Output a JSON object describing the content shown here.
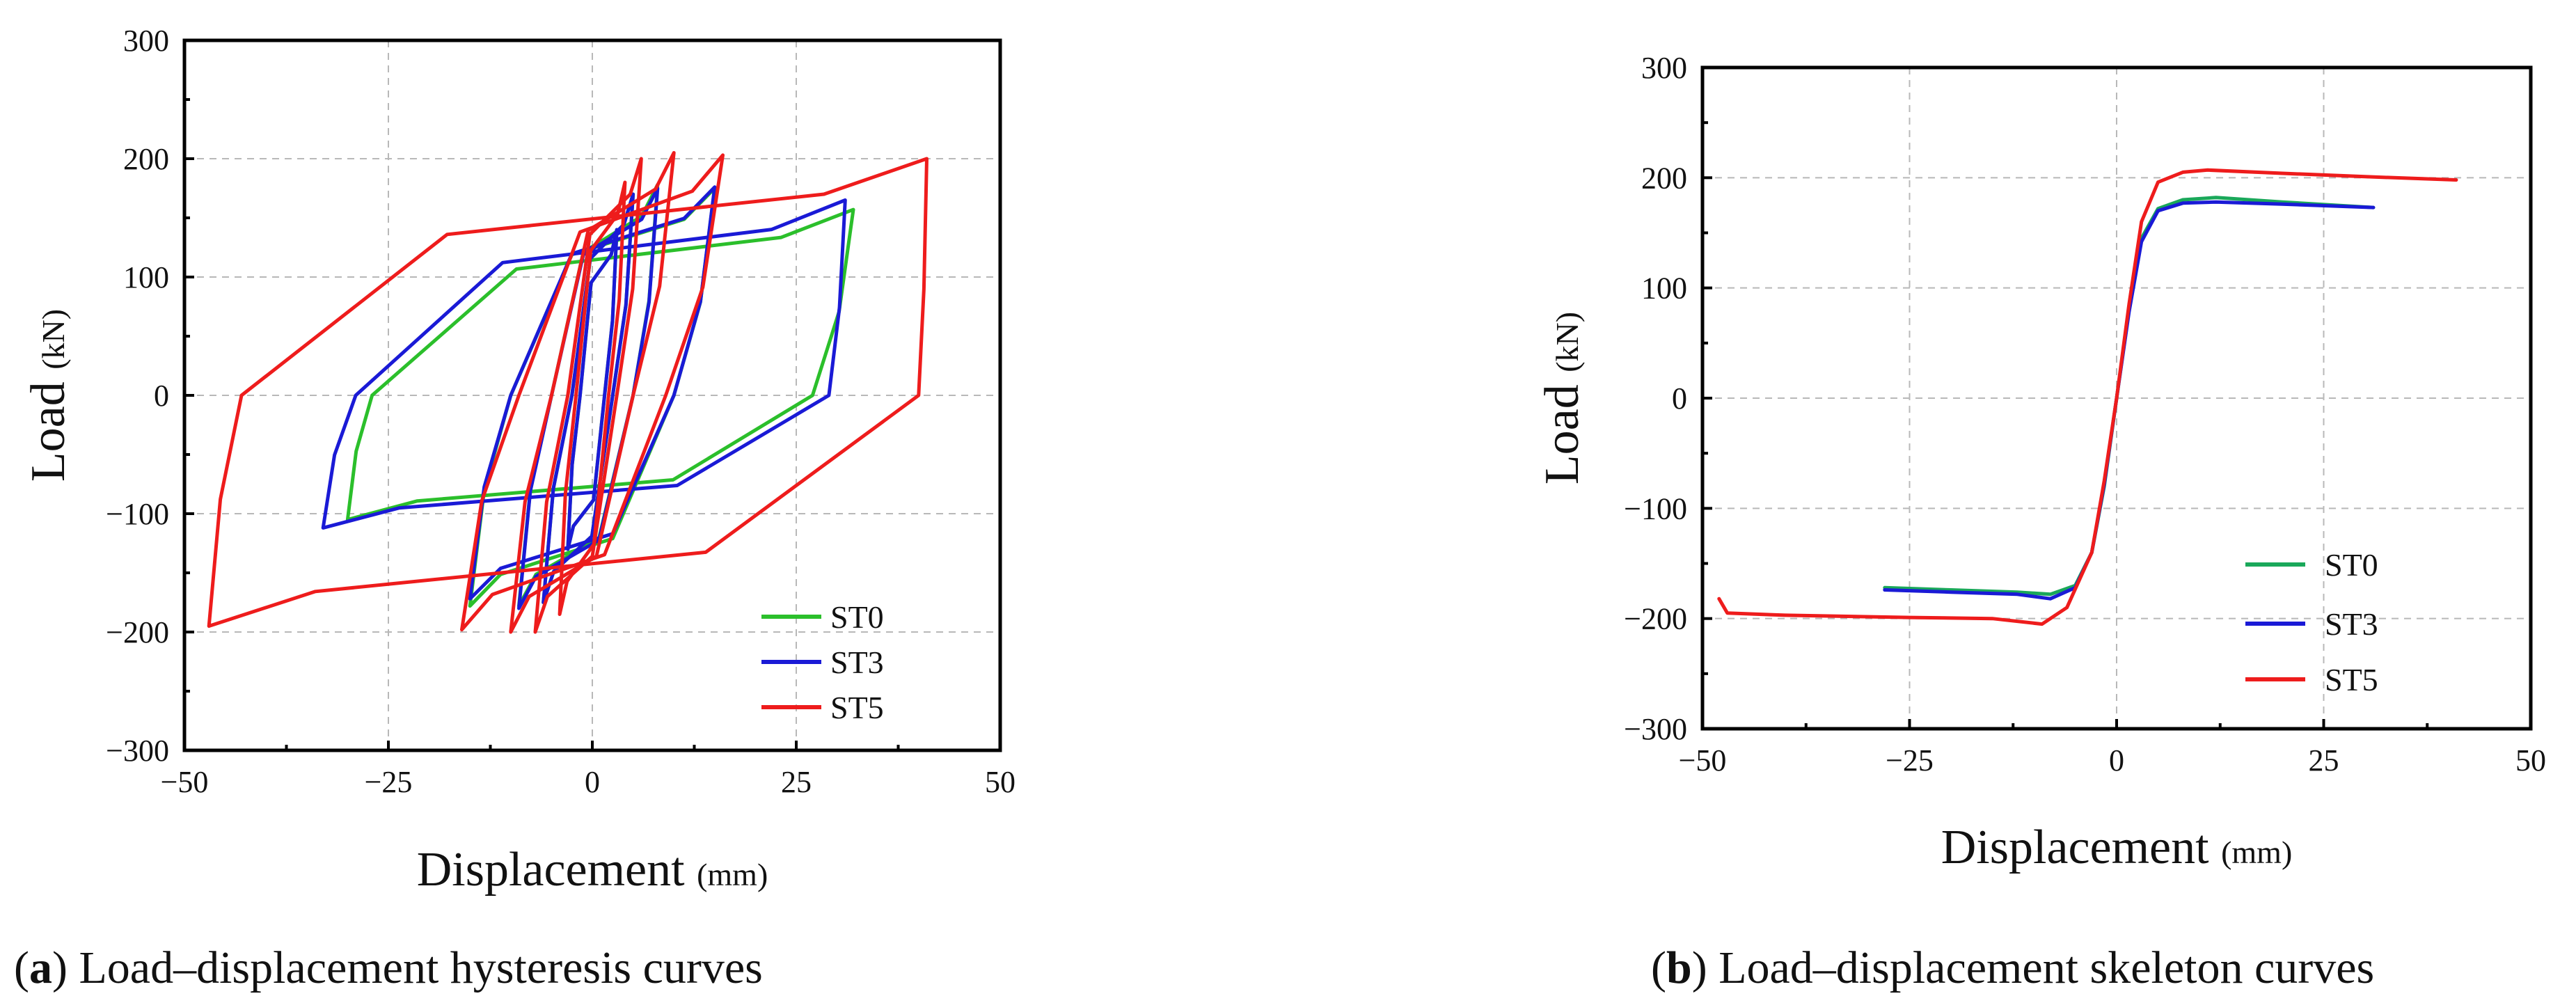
{
  "chart_data": [
    {
      "id": "a",
      "type": "line",
      "title": "Load–displacement hysteresis curves",
      "caption_label": "a",
      "xlabel": "Displacement",
      "xunit": "(mm)",
      "ylabel": "Load",
      "yunit": "(kN)",
      "xlim": [
        -50,
        50
      ],
      "ylim": [
        -300,
        300
      ],
      "xticks": [
        -50,
        -25,
        0,
        25,
        50
      ],
      "yticks": [
        -300,
        -200,
        -100,
        0,
        100,
        200,
        300
      ],
      "xtick_labels": [
        "−50",
        "−25",
        "0",
        "25",
        "50"
      ],
      "ytick_labels": [
        "−300",
        "−200",
        "−100",
        "0",
        "100",
        "200",
        "300"
      ],
      "grid": true,
      "legend_position": "bottom-right",
      "legend": [
        "ST0",
        "ST3",
        "ST5"
      ],
      "series": [
        {
          "name": "ST0",
          "color": "#2bbf2b",
          "loops": [
            {
              "peak_pos": [
                3,
                140
              ],
              "peak_neg": [
                -3,
                -130
              ],
              "upper_zero": -1.5,
              "lower_zero": 1.5
            },
            {
              "peak_pos": [
                5,
                170
              ],
              "peak_neg": [
                -6,
                -175
              ],
              "upper_zero": -2.5,
              "lower_zero": 2.5
            },
            {
              "peak_pos": [
                8,
                178
              ],
              "peak_neg": [
                -9,
                -178
              ],
              "upper_zero": -5,
              "lower_zero": 5
            },
            {
              "peak_pos": [
                15,
                175
              ],
              "peak_neg": [
                -15,
                -178
              ],
              "upper_zero": -10,
              "lower_zero": 10
            },
            {
              "peak_pos": [
                32,
                157
              ],
              "peak_neg": [
                -30,
                -105
              ],
              "upper_zero": -27,
              "lower_zero": 27
            }
          ]
        },
        {
          "name": "ST3",
          "color": "#1a1ad6",
          "loops": [
            {
              "peak_pos": [
                3,
                140
              ],
              "peak_neg": [
                -3,
                -130
              ],
              "upper_zero": -1.5,
              "lower_zero": 1.5
            },
            {
              "peak_pos": [
                5,
                170
              ],
              "peak_neg": [
                -6,
                -175
              ],
              "upper_zero": -2.5,
              "lower_zero": 2.5
            },
            {
              "peak_pos": [
                8,
                175
              ],
              "peak_neg": [
                -9,
                -180
              ],
              "upper_zero": -5,
              "lower_zero": 5
            },
            {
              "peak_pos": [
                15,
                176
              ],
              "peak_neg": [
                -15,
                -172
              ],
              "upper_zero": -10,
              "lower_zero": 10
            },
            {
              "peak_pos": [
                31,
                165
              ],
              "peak_neg": [
                -33,
                -112
              ],
              "upper_zero": -29,
              "lower_zero": 29
            }
          ]
        },
        {
          "name": "ST5",
          "color": "#ee1c1c",
          "loops": [
            {
              "peak_pos": [
                4,
                180
              ],
              "peak_neg": [
                -4,
                -185
              ],
              "upper_zero": -2,
              "lower_zero": 2
            },
            {
              "peak_pos": [
                6,
                200
              ],
              "peak_neg": [
                -7,
                -200
              ],
              "upper_zero": -3,
              "lower_zero": 3
            },
            {
              "peak_pos": [
                10,
                205
              ],
              "peak_neg": [
                -10,
                -200
              ],
              "upper_zero": -5,
              "lower_zero": 5
            },
            {
              "peak_pos": [
                16,
                203
              ],
              "peak_neg": [
                -16,
                -198
              ],
              "upper_zero": -9,
              "lower_zero": 9
            },
            {
              "peak_pos": [
                41,
                200
              ],
              "peak_neg": [
                -47,
                -195
              ],
              "upper_zero": -43,
              "lower_zero": 40
            }
          ]
        }
      ]
    },
    {
      "id": "b",
      "type": "line",
      "title": "Load–displacement skeleton curves",
      "caption_label": "b",
      "xlabel": "Displacement",
      "xunit": "(mm)",
      "ylabel": "Load",
      "yunit": "(kN)",
      "xlim": [
        -50,
        50
      ],
      "ylim": [
        -300,
        300
      ],
      "xticks": [
        -50,
        -25,
        0,
        25,
        50
      ],
      "yticks": [
        -300,
        -200,
        -100,
        0,
        100,
        200,
        300
      ],
      "xtick_labels": [
        "−50",
        "−25",
        "0",
        "25",
        "50"
      ],
      "ytick_labels": [
        "−300",
        "−200",
        "−100",
        "0",
        "100",
        "200",
        "300"
      ],
      "grid": true,
      "legend_position": "right",
      "legend": [
        "ST0",
        "ST3",
        "ST5"
      ],
      "series": [
        {
          "name": "ST0",
          "color": "#1aa85a",
          "x": [
            -28,
            -20,
            -12,
            -8,
            -5,
            -3,
            -1.5,
            0,
            1.5,
            3,
            5,
            8,
            12,
            20,
            31
          ],
          "y": [
            -172,
            -174,
            -176,
            -178,
            -170,
            -140,
            -80,
            0,
            80,
            145,
            172,
            180,
            182,
            178,
            173
          ]
        },
        {
          "name": "ST3",
          "color": "#1a1ad6",
          "x": [
            -28,
            -20,
            -12,
            -8,
            -5,
            -3,
            -1.5,
            0,
            1.5,
            3,
            5,
            8,
            12,
            20,
            31
          ],
          "y": [
            -174,
            -176,
            -178,
            -182,
            -172,
            -140,
            -78,
            0,
            78,
            142,
            170,
            177,
            178,
            176,
            173
          ]
        },
        {
          "name": "ST5",
          "color": "#ee1c1c",
          "x": [
            -48,
            -47,
            -40,
            -25,
            -15,
            -9,
            -6,
            -3,
            -1.5,
            0,
            1.5,
            3,
            5,
            8,
            11,
            20,
            30,
            41
          ],
          "y": [
            -182,
            -195,
            -197,
            -199,
            -200,
            -205,
            -190,
            -140,
            -75,
            0,
            85,
            160,
            196,
            205,
            207,
            204,
            201,
            198
          ]
        }
      ]
    }
  ]
}
